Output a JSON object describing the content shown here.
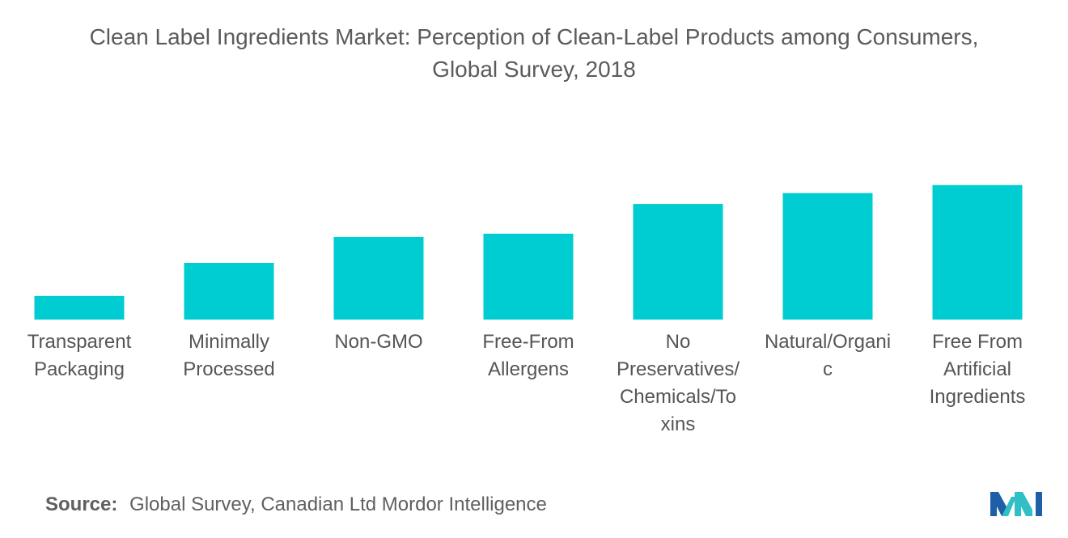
{
  "chart_data": {
    "type": "bar",
    "title_lines": [
      "Clean Label Ingredients Market: Perception of Clean-Label Products among Consumers,",
      "Global Survey, 2018"
    ],
    "categories": [
      [
        "Transparent",
        "Packaging"
      ],
      [
        "Minimally",
        "Processed"
      ],
      [
        "Non-GMO"
      ],
      [
        "Free-From",
        "Allergens"
      ],
      [
        "No",
        "Preservatives/",
        "Chemicals/To",
        "xins"
      ],
      [
        "Natural/Organi",
        "c"
      ],
      [
        "Free From",
        "Artificial",
        "Ingredients"
      ]
    ],
    "values": [
      5,
      12,
      17.5,
      18.2,
      24.5,
      26.8,
      28.5
    ],
    "ylim": [
      0,
      30
    ],
    "bar_color": "#00cdd1",
    "grid": false,
    "legend": "none"
  },
  "source": {
    "label": "Source:",
    "text": "Global Survey, Canadian Ltd Mordor Intelligence"
  },
  "logo": {
    "icon": "mordor-intelligence-logo",
    "colors": [
      "#1f5fa8",
      "#2fbfc4"
    ]
  }
}
